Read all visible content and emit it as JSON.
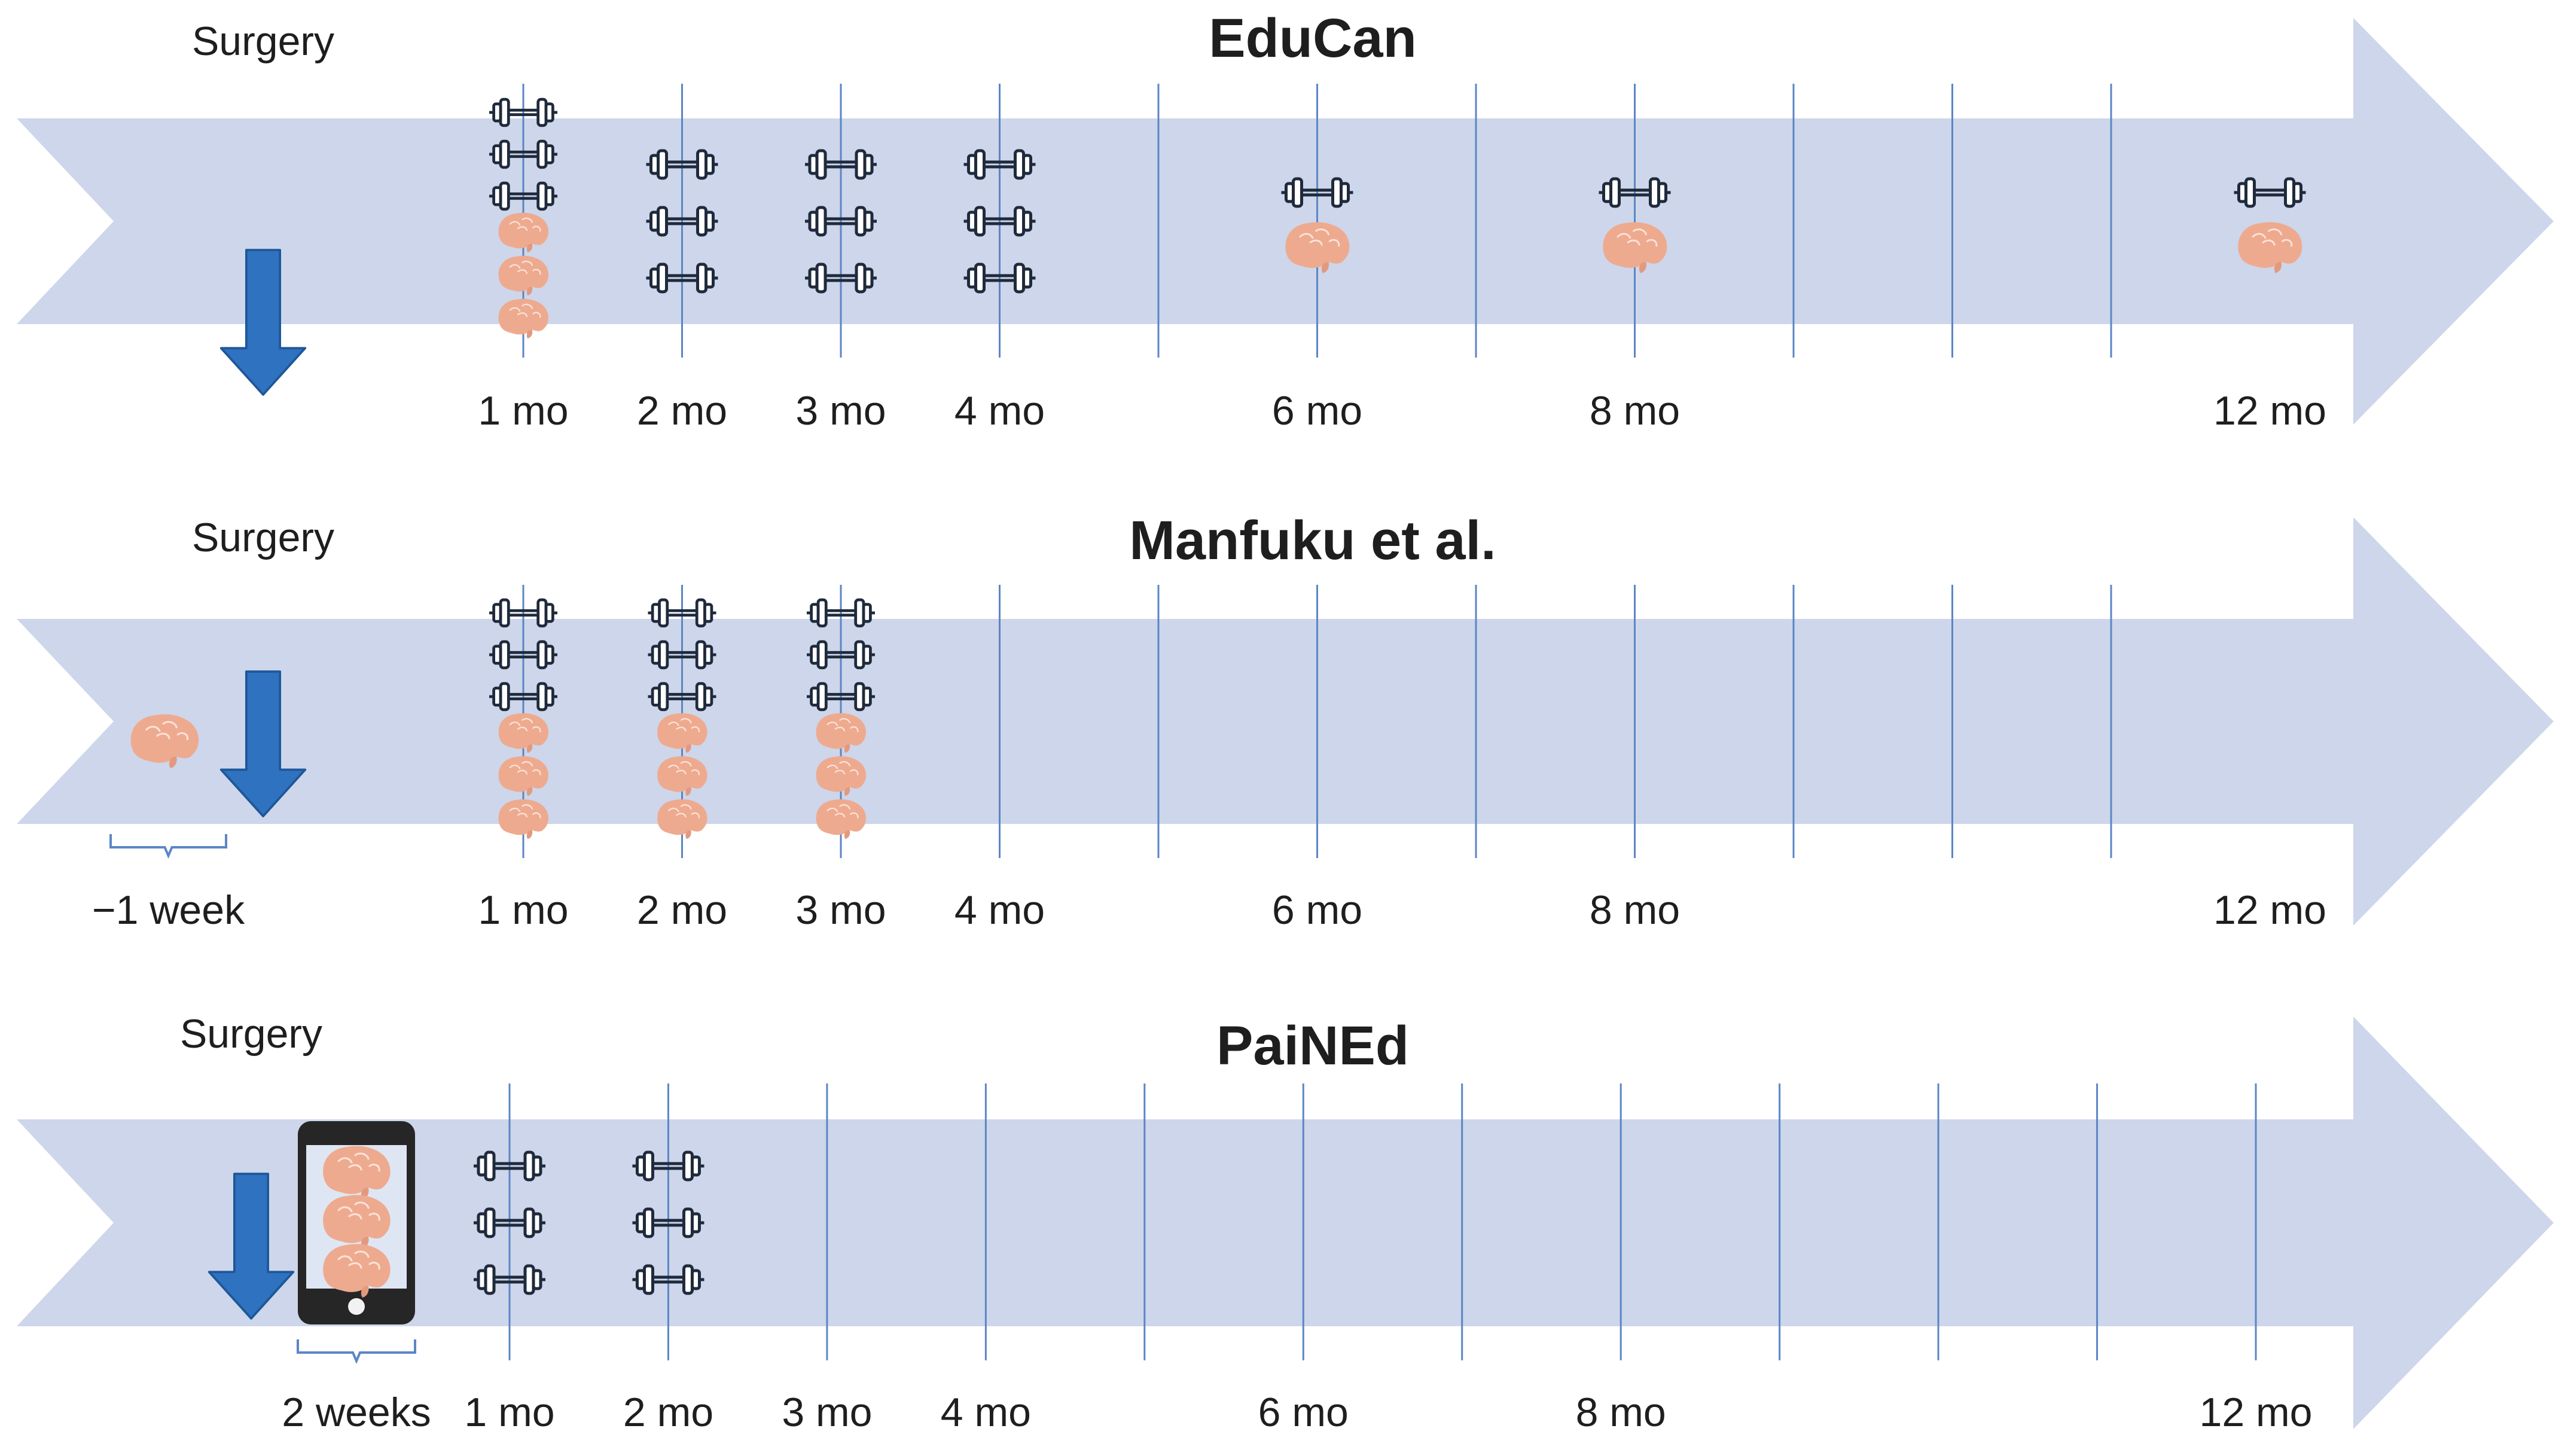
{
  "panels": [
    {
      "title": "EduCan",
      "surgery_label": "Surgery",
      "bracket_label": "",
      "month_labels": [
        "1 mo",
        "2 mo",
        "3 mo",
        "4 mo",
        "6 mo",
        "8 mo",
        "12 mo"
      ],
      "sessions": [
        {
          "month": 1,
          "exercise": 3,
          "education": 3
        },
        {
          "month": 2,
          "exercise": 3,
          "education": 0
        },
        {
          "month": 3,
          "exercise": 3,
          "education": 0
        },
        {
          "month": 4,
          "exercise": 3,
          "education": 0
        },
        {
          "month": 6,
          "exercise": 1,
          "education": 1
        },
        {
          "month": 8,
          "exercise": 1,
          "education": 1
        },
        {
          "month": 12,
          "exercise": 1,
          "education": 1
        }
      ]
    },
    {
      "title": "Manfuku et al.",
      "surgery_label": "Surgery",
      "bracket_label": "−1 week",
      "pre_surgery_education": 1,
      "month_labels": [
        "1 mo",
        "2 mo",
        "3 mo",
        "4 mo",
        "6 mo",
        "8 mo",
        "12 mo"
      ],
      "sessions": [
        {
          "month": 1,
          "exercise": 3,
          "education": 3
        },
        {
          "month": 2,
          "exercise": 3,
          "education": 3
        },
        {
          "month": 3,
          "exercise": 3,
          "education": 3
        }
      ]
    },
    {
      "title": "PaiNEd",
      "surgery_label": "Surgery",
      "bracket_label": "2 weeks",
      "app_education": 3,
      "month_labels": [
        "1 mo",
        "2 mo",
        "3 mo",
        "4 mo",
        "6 mo",
        "8 mo",
        "12 mo"
      ],
      "sessions": [
        {
          "month": 1,
          "exercise": 3,
          "education": 0
        },
        {
          "month": 2,
          "exercise": 3,
          "education": 0
        }
      ]
    }
  ],
  "icons": {
    "exercise": "dumbbell-icon",
    "education": "brain-icon",
    "surgery": "down-arrow-icon",
    "app": "smartphone-icon"
  },
  "colors": {
    "band": "#cdd6ea",
    "gridline": "#5b86c5",
    "surgery_arrow": "#2f72bf",
    "brain": "#eeaa8f",
    "dumbbell": "#1f2a3c",
    "phone": "#262626"
  }
}
